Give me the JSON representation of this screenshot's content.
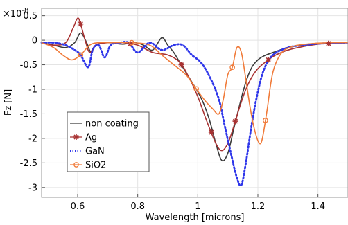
{
  "chart_data": {
    "type": "line",
    "xlabel": "Wavelength [microns]",
    "ylabel": "Fz [N]",
    "y_multiplier_label": "×10",
    "y_multiplier_exponent": "-8",
    "xlim": [
      0.48,
      1.5
    ],
    "ylim": [
      -3.2,
      0.65
    ],
    "xticks": [
      0.6,
      0.8,
      1,
      1.2,
      1.4
    ],
    "xtick_labels": [
      "0.6",
      "0.8",
      "1",
      "1.2",
      "1.4"
    ],
    "yticks": [
      0.5,
      0,
      -0.5,
      -1,
      -1.5,
      -2,
      -2.5,
      -3
    ],
    "ytick_labels": [
      "0.5",
      "0",
      "-0.5",
      "-1",
      "-1.5",
      "-2",
      "-2.5",
      "-3"
    ],
    "grid": true,
    "legend_position": "lower-left",
    "series": [
      {
        "name": "non coating",
        "color": "#3a3a3a",
        "style": "solid",
        "marker": "none",
        "x": [
          0.48,
          0.52,
          0.56,
          0.59,
          0.61,
          0.63,
          0.645,
          0.66,
          0.7,
          0.75,
          0.79,
          0.82,
          0.85,
          0.88,
          0.9,
          0.92,
          0.94,
          0.96,
          0.98,
          1.0,
          1.02,
          1.04,
          1.06,
          1.08,
          1.1,
          1.12,
          1.14,
          1.16,
          1.18,
          1.2,
          1.22,
          1.25,
          1.3,
          1.35,
          1.4,
          1.45,
          1.5
        ],
        "y": [
          -0.05,
          -0.1,
          -0.15,
          -0.05,
          0.15,
          -0.05,
          -0.25,
          -0.1,
          -0.05,
          -0.08,
          -0.05,
          -0.1,
          -0.2,
          0.05,
          -0.1,
          -0.25,
          -0.45,
          -0.65,
          -0.85,
          -1.05,
          -1.3,
          -1.65,
          -2.1,
          -2.45,
          -2.3,
          -1.8,
          -1.3,
          -0.85,
          -0.55,
          -0.4,
          -0.32,
          -0.25,
          -0.15,
          -0.1,
          -0.07,
          -0.06,
          -0.05
        ]
      },
      {
        "name": "Ag",
        "color": "#a83232",
        "style": "solid",
        "marker": "star",
        "marker_x": [
          0.61,
          0.775,
          0.945,
          1.045,
          1.125,
          1.235,
          1.435
        ],
        "x": [
          0.48,
          0.52,
          0.56,
          0.585,
          0.6,
          0.61,
          0.625,
          0.64,
          0.66,
          0.7,
          0.75,
          0.8,
          0.85,
          0.9,
          0.94,
          0.97,
          1.0,
          1.03,
          1.06,
          1.08,
          1.1,
          1.12,
          1.14,
          1.16,
          1.18,
          1.2,
          1.23,
          1.26,
          1.3,
          1.35,
          1.4,
          1.45,
          1.5
        ],
        "y": [
          -0.05,
          -0.1,
          -0.05,
          0.25,
          0.45,
          0.33,
          0.0,
          -0.25,
          -0.1,
          -0.05,
          -0.05,
          -0.1,
          -0.25,
          -0.3,
          -0.45,
          -0.75,
          -1.15,
          -1.65,
          -2.1,
          -2.25,
          -2.1,
          -1.75,
          -1.35,
          -1.0,
          -0.75,
          -0.58,
          -0.42,
          -0.3,
          -0.2,
          -0.13,
          -0.08,
          -0.06,
          -0.05
        ]
      },
      {
        "name": "GaN",
        "color": "#2e36ea",
        "style": "dotted",
        "marker": "none",
        "x": [
          0.48,
          0.52,
          0.56,
          0.59,
          0.61,
          0.635,
          0.65,
          0.67,
          0.69,
          0.71,
          0.74,
          0.77,
          0.8,
          0.84,
          0.88,
          0.92,
          0.95,
          0.98,
          1.01,
          1.04,
          1.07,
          1.09,
          1.11,
          1.13,
          1.145,
          1.16,
          1.18,
          1.2,
          1.22,
          1.25,
          1.3,
          1.35,
          1.4,
          1.45,
          1.5
        ],
        "y": [
          -0.05,
          -0.05,
          -0.1,
          -0.2,
          -0.3,
          -0.55,
          -0.2,
          -0.1,
          -0.35,
          -0.1,
          -0.05,
          -0.05,
          -0.25,
          -0.05,
          -0.2,
          -0.1,
          -0.1,
          -0.3,
          -0.45,
          -0.75,
          -1.2,
          -1.75,
          -2.3,
          -2.8,
          -2.95,
          -2.5,
          -1.7,
          -1.05,
          -0.6,
          -0.3,
          -0.15,
          -0.1,
          -0.07,
          -0.06,
          -0.05
        ]
      },
      {
        "name": "SiO2",
        "color": "#f07b3a",
        "style": "solid",
        "marker": "circle",
        "marker_x": [
          0.61,
          0.78,
          0.995,
          1.115,
          1.225
        ],
        "x": [
          0.48,
          0.52,
          0.55,
          0.58,
          0.61,
          0.64,
          0.67,
          0.72,
          0.78,
          0.84,
          0.88,
          0.92,
          0.96,
          0.99,
          1.02,
          1.05,
          1.07,
          1.085,
          1.1,
          1.115,
          1.13,
          1.145,
          1.16,
          1.175,
          1.19,
          1.205,
          1.215,
          1.23,
          1.25,
          1.28,
          1.32,
          1.36,
          1.4,
          1.45,
          1.5
        ],
        "y": [
          -0.05,
          -0.15,
          -0.3,
          -0.4,
          -0.3,
          -0.1,
          -0.05,
          -0.05,
          -0.05,
          -0.1,
          -0.3,
          -0.5,
          -0.7,
          -0.95,
          -1.2,
          -1.4,
          -1.5,
          -1.2,
          -0.7,
          -0.55,
          -0.15,
          -0.25,
          -0.8,
          -1.4,
          -1.85,
          -2.1,
          -2.0,
          -1.45,
          -0.65,
          -0.25,
          -0.12,
          -0.08,
          -0.06,
          -0.05,
          -0.05
        ]
      }
    ]
  }
}
